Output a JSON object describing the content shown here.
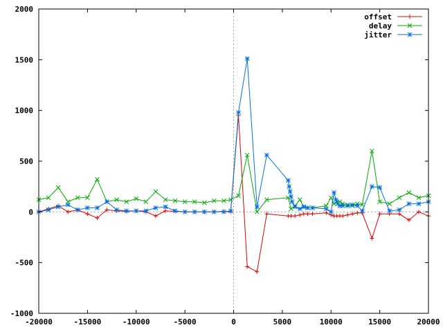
{
  "chart_data": {
    "type": "line",
    "title": "",
    "xlabel": "",
    "ylabel": "",
    "xlim": [
      -20000,
      20000
    ],
    "ylim": [
      -1000,
      2000
    ],
    "xticks": [
      -20000,
      -15000,
      -10000,
      -5000,
      0,
      5000,
      10000,
      15000,
      20000
    ],
    "yticks": [
      -1000,
      -500,
      0,
      500,
      1000,
      1500,
      2000
    ],
    "grid": false,
    "zero_lines": true,
    "legend_position": "top-right",
    "series": [
      {
        "name": "offset",
        "color": "#dd0000",
        "marker": "plus",
        "x": [
          -20000,
          -19000,
          -18000,
          -17000,
          -16000,
          -15000,
          -14000,
          -13000,
          -12000,
          -11000,
          -10000,
          -9000,
          -8000,
          -7000,
          -6000,
          -5000,
          -4000,
          -3000,
          -2000,
          -1000,
          -300,
          500,
          1400,
          2400,
          3400,
          5600,
          5900,
          6300,
          6800,
          7200,
          7600,
          8100,
          9500,
          10000,
          10300,
          10600,
          10900,
          11200,
          11700,
          12200,
          12700,
          13200,
          14200,
          15000,
          16000,
          17000,
          18000,
          19000,
          20000
        ],
        "y": [
          0,
          30,
          60,
          0,
          20,
          -20,
          -60,
          20,
          10,
          5,
          10,
          0,
          -40,
          10,
          5,
          0,
          0,
          0,
          0,
          5,
          0,
          950,
          -540,
          -590,
          -20,
          -40,
          -40,
          -40,
          -30,
          -20,
          -20,
          -20,
          -10,
          -30,
          -40,
          -40,
          -40,
          -40,
          -30,
          -20,
          -10,
          -10,
          -260,
          -20,
          -20,
          -20,
          -80,
          0,
          -40
        ]
      },
      {
        "name": "delay",
        "color": "#00aa00",
        "marker": "cross",
        "x": [
          -20000,
          -19000,
          -18000,
          -17000,
          -16000,
          -15000,
          -14000,
          -13000,
          -12000,
          -11000,
          -10000,
          -9000,
          -8000,
          -7000,
          -6000,
          -5000,
          -4000,
          -3000,
          -2000,
          -1000,
          -300,
          500,
          1400,
          2400,
          3400,
          5600,
          5900,
          6300,
          6800,
          7200,
          7600,
          8100,
          9500,
          10000,
          10300,
          10600,
          10900,
          11200,
          11700,
          12200,
          12700,
          13200,
          14200,
          15000,
          16000,
          17000,
          18000,
          19000,
          20000
        ],
        "y": [
          120,
          140,
          240,
          100,
          140,
          140,
          320,
          100,
          120,
          100,
          130,
          100,
          200,
          120,
          110,
          100,
          100,
          90,
          110,
          110,
          120,
          160,
          560,
          0,
          120,
          140,
          30,
          60,
          120,
          50,
          40,
          40,
          60,
          140,
          80,
          100,
          100,
          80,
          70,
          60,
          80,
          70,
          600,
          100,
          80,
          140,
          190,
          140,
          160
        ]
      },
      {
        "name": "jitter",
        "color": "#0070dd",
        "marker": "star",
        "x": [
          -20000,
          -19000,
          -18000,
          -17000,
          -16000,
          -15000,
          -14000,
          -13000,
          -12000,
          -11000,
          -10000,
          -9000,
          -8000,
          -7000,
          -6000,
          -5000,
          -4000,
          -3000,
          -2000,
          -1000,
          -300,
          500,
          1400,
          2400,
          3400,
          5600,
          5700,
          5800,
          5900,
          6000,
          6300,
          6800,
          7200,
          7600,
          8100,
          9500,
          10000,
          10300,
          10500,
          10700,
          10900,
          11200,
          11700,
          12200,
          12700,
          13200,
          14200,
          15000,
          16000,
          17000,
          18000,
          19000,
          20000
        ],
        "y": [
          0,
          20,
          50,
          70,
          20,
          40,
          40,
          100,
          20,
          10,
          10,
          10,
          40,
          50,
          10,
          0,
          0,
          0,
          0,
          0,
          10,
          980,
          1510,
          50,
          560,
          310,
          250,
          200,
          150,
          100,
          50,
          30,
          50,
          40,
          40,
          30,
          0,
          190,
          120,
          80,
          60,
          60,
          60,
          70,
          60,
          10,
          250,
          240,
          10,
          20,
          80,
          80,
          100
        ]
      }
    ]
  }
}
